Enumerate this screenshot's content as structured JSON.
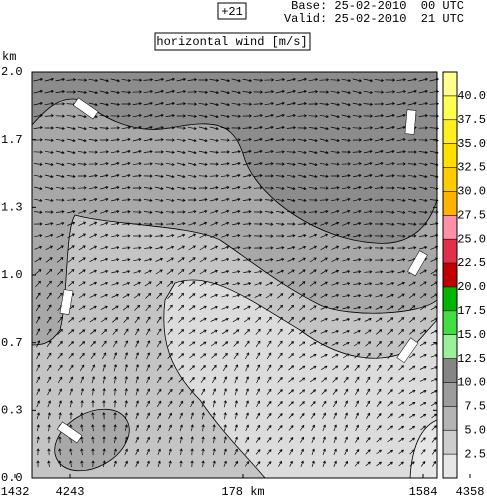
{
  "chart_data": {
    "type": "contour",
    "forecast": "+21",
    "base": "Base: 25-02-2010  00 UTC",
    "valid": "Valid: 25-02-2010  21 UTC",
    "title": "horizontal wind [m/s]",
    "y_label": "km",
    "ylim": [
      0,
      2
    ],
    "yticks": [
      {
        "value": 0,
        "label": "0.0"
      },
      {
        "value": 0.3333,
        "label": "0.3"
      },
      {
        "value": 0.6667,
        "label": "0.7"
      },
      {
        "value": 1,
        "label": "1.0"
      },
      {
        "value": 1.3333,
        "label": "1.3"
      },
      {
        "value": 1.6667,
        "label": "1.7"
      },
      {
        "value": 2,
        "label": "2.0"
      }
    ],
    "x_labels": [
      "1432",
      "4243",
      "178 km",
      "1584",
      "4358"
    ],
    "colorbar": {
      "lim": [
        0,
        42.5
      ],
      "ticks": [
        2.5,
        {
          "value": 5,
          "label": "5.0"
        },
        7.5,
        {
          "value": 10,
          "label": "10.0"
        },
        12.5,
        {
          "value": 15,
          "label": "15.0"
        },
        17.5,
        {
          "value": 20,
          "label": "20.0"
        },
        22.5,
        {
          "value": 25,
          "label": "25.0"
        },
        27.5,
        {
          "value": 30,
          "label": "30.0"
        },
        32.5,
        {
          "value": 35,
          "label": "35.0"
        },
        37.5,
        {
          "value": 40,
          "label": "40.0"
        }
      ],
      "colors": [
        "#e6e6e6",
        "#cdcdcd",
        "#b4b4b4",
        "#9c9c9c",
        "#858585",
        "#9cf09c",
        "#44dd44",
        "#00b400",
        "#c00000",
        "#e0304c",
        "#ff90a8",
        "#ffb400",
        "#ffcc00",
        "#ffe000",
        "#ffee20",
        "#ffff50",
        "#ffff90"
      ]
    }
  }
}
